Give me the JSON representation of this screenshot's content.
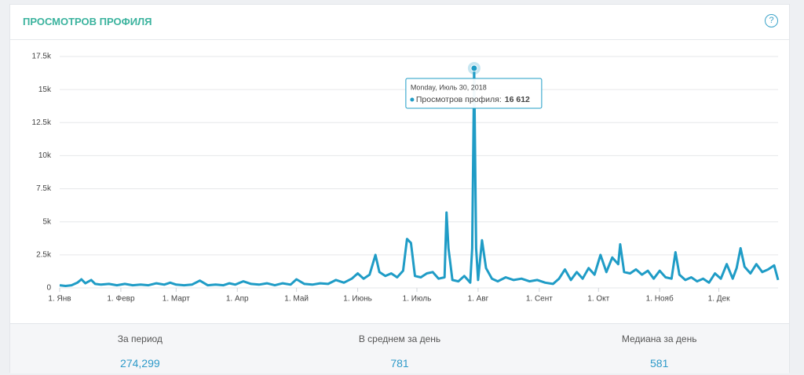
{
  "chart_data": {
    "type": "line",
    "title": "ПРОСМОТРОВ ПРОФИЛЯ",
    "color": "#1f9cc6",
    "x": [
      0,
      3,
      6,
      9,
      11,
      13,
      16,
      18,
      21,
      25,
      29,
      33,
      37,
      41,
      45,
      49,
      53,
      56,
      59,
      63,
      67,
      71,
      75,
      79,
      83,
      86,
      89,
      93,
      97,
      101,
      105,
      109,
      113,
      117,
      120,
      124,
      128,
      132,
      136,
      140,
      144,
      148,
      151,
      154,
      157,
      160,
      162,
      165,
      168,
      171,
      174,
      176,
      178,
      180,
      183,
      186,
      189,
      192,
      195,
      196,
      197,
      199,
      202,
      205,
      208,
      209,
      210,
      211,
      212,
      214,
      216,
      219,
      222,
      226,
      230,
      234,
      238,
      242,
      246,
      250,
      253,
      256,
      259,
      262,
      265,
      268,
      271,
      274,
      277,
      280,
      283,
      284,
      286,
      289,
      292,
      295,
      298,
      301,
      304,
      307,
      310,
      312,
      314,
      317,
      320,
      323,
      326,
      329,
      332,
      335,
      338,
      341,
      343,
      345,
      347,
      350,
      353,
      356,
      359,
      362,
      364
    ],
    "values": [
      200,
      150,
      200,
      400,
      650,
      350,
      600,
      300,
      250,
      300,
      200,
      300,
      200,
      250,
      200,
      350,
      250,
      400,
      250,
      200,
      250,
      550,
      200,
      250,
      200,
      350,
      250,
      500,
      300,
      250,
      350,
      200,
      350,
      250,
      650,
      300,
      250,
      350,
      300,
      600,
      400,
      700,
      1100,
      700,
      1000,
      2500,
      1200,
      900,
      1100,
      800,
      1300,
      3700,
      3400,
      900,
      800,
      1100,
      1200,
      700,
      800,
      5700,
      3000,
      600,
      500,
      900,
      400,
      3000,
      16612,
      3000,
      600,
      3600,
      1500,
      700,
      500,
      800,
      600,
      700,
      500,
      600,
      400,
      300,
      700,
      1400,
      600,
      1200,
      700,
      1500,
      1000,
      2500,
      1200,
      2300,
      1800,
      3300,
      1200,
      1100,
      1400,
      1000,
      1300,
      700,
      1300,
      800,
      700,
      2700,
      1000,
      600,
      800,
      500,
      700,
      400,
      1100,
      700,
      1800,
      700,
      1500,
      3000,
      1600,
      1100,
      1800,
      1200,
      1400,
      1700,
      600
    ],
    "xlim": [
      0,
      364
    ],
    "xticks": [
      {
        "value": 0,
        "label": "1. Янв"
      },
      {
        "value": 31,
        "label": "1. Февр"
      },
      {
        "value": 59,
        "label": "1. Март"
      },
      {
        "value": 90,
        "label": "1. Апр"
      },
      {
        "value": 120,
        "label": "1. Май"
      },
      {
        "value": 151,
        "label": "1. Июнь"
      },
      {
        "value": 181,
        "label": "1. Июль"
      },
      {
        "value": 212,
        "label": "1. Авг"
      },
      {
        "value": 243,
        "label": "1. Сент"
      },
      {
        "value": 273,
        "label": "1. Окт"
      },
      {
        "value": 304,
        "label": "1. Нояб"
      },
      {
        "value": 334,
        "label": "1. Дек"
      }
    ],
    "ylim": [
      0,
      17500
    ],
    "yticks": [
      0,
      {
        "value": 2500,
        "label": "2.5k"
      },
      {
        "value": 5000,
        "label": "5k"
      },
      {
        "value": 7500,
        "label": "7.5k"
      },
      {
        "value": 10000,
        "label": "10k"
      },
      {
        "value": 12500,
        "label": "12.5k"
      },
      {
        "value": 15000,
        "label": "15k"
      },
      {
        "value": 17500,
        "label": "17.5k"
      }
    ],
    "grid": true,
    "tooltip": {
      "date": "Monday, Июль 30, 2018",
      "series_label": "Просмотров профиля:",
      "value_label": "16 612",
      "point_index": 66
    }
  },
  "help_icon": "?",
  "stats": [
    {
      "label": "За период",
      "value": "274,299"
    },
    {
      "label": "В среднем за день",
      "value": "781"
    },
    {
      "label": "Медиана за день",
      "value": "581"
    }
  ]
}
